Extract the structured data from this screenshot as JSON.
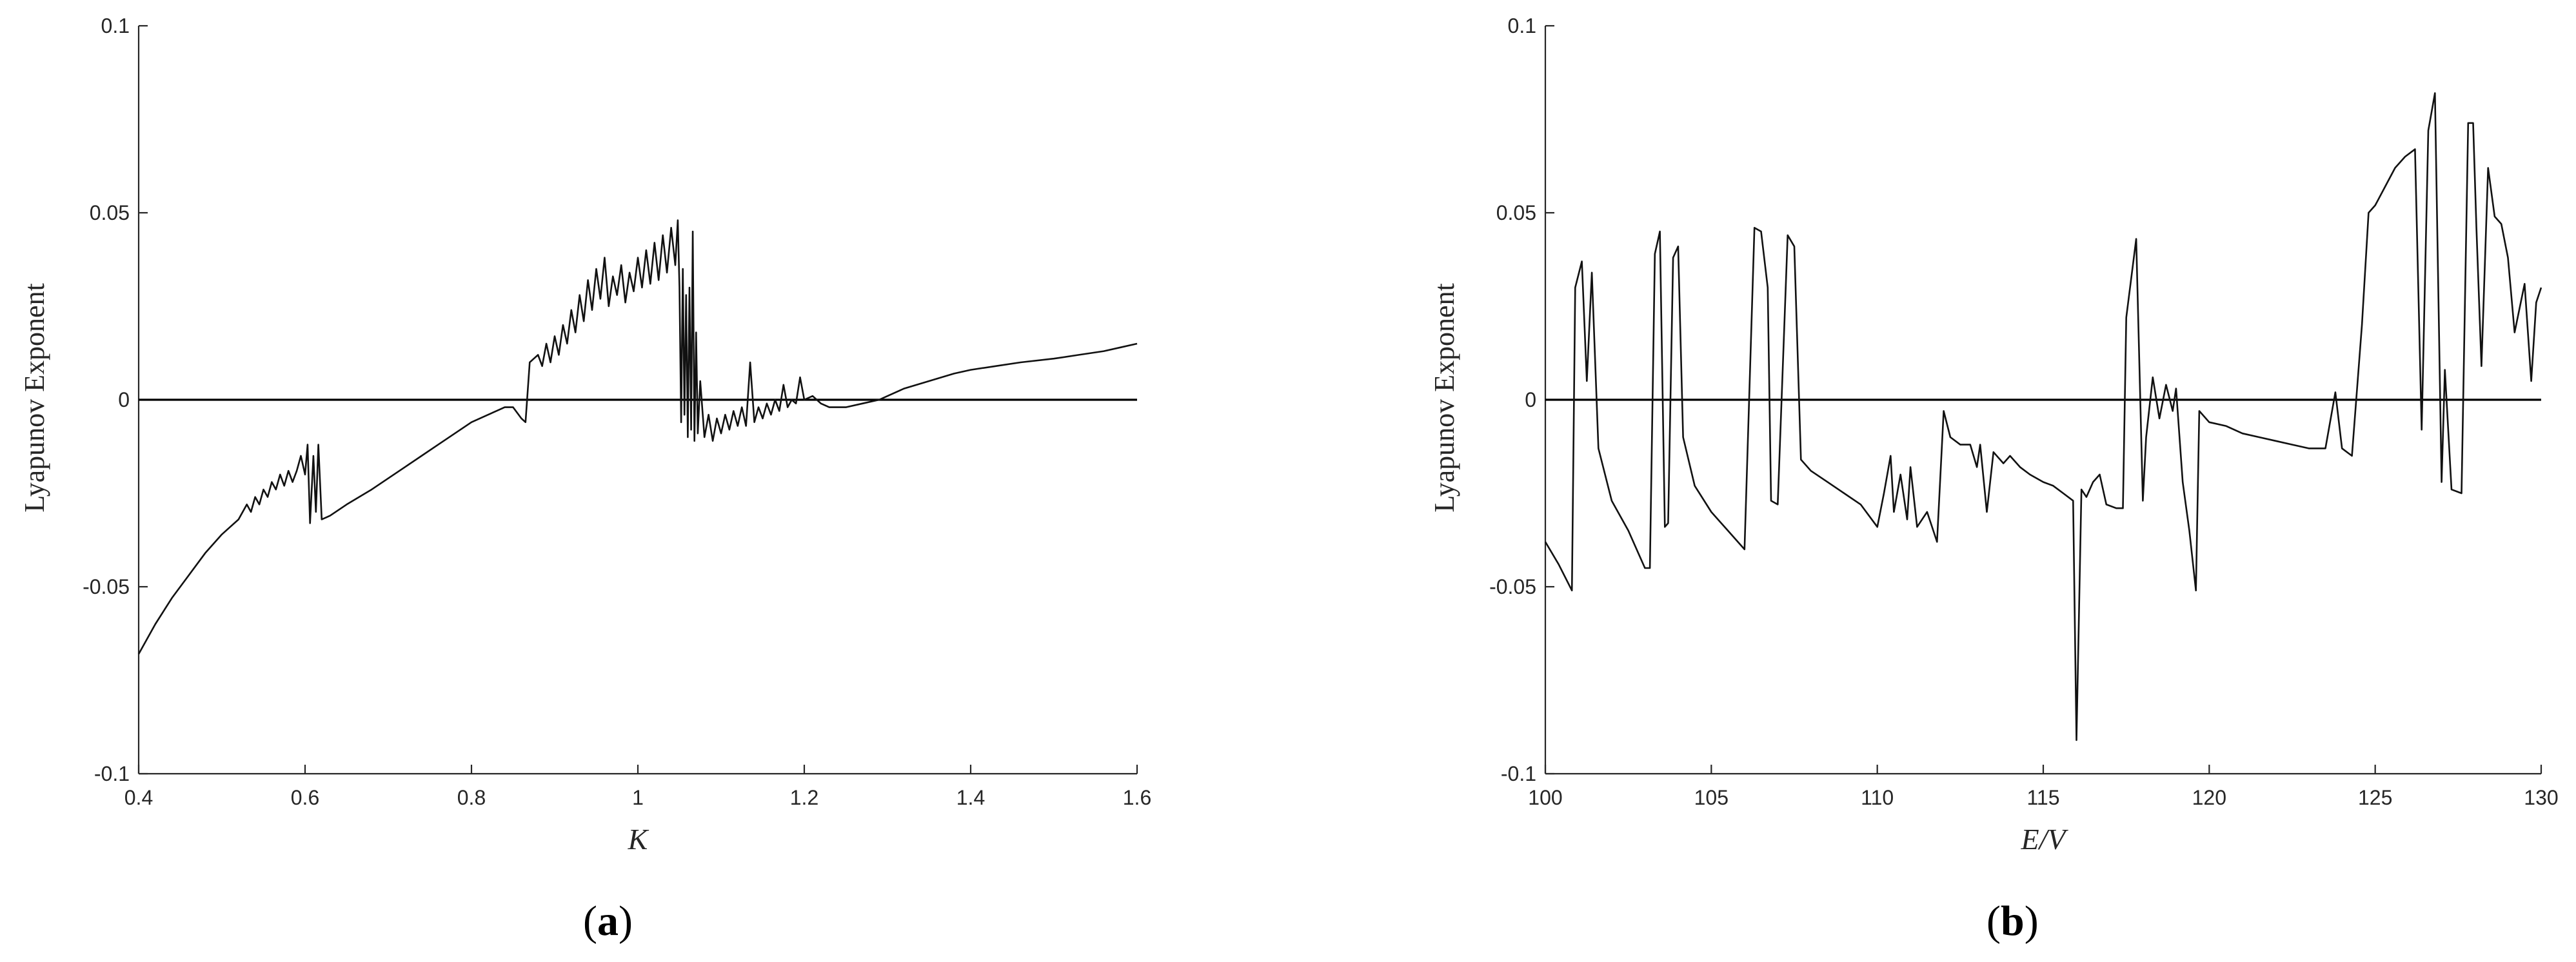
{
  "chart_data": [
    {
      "type": "line",
      "panel_label": "a",
      "xlabel": "K",
      "ylabel": "Lyapunov Exponent",
      "xlim": [
        0.4,
        1.6
      ],
      "ylim": [
        -0.1,
        0.1
      ],
      "xticks": [
        0.4,
        0.6,
        0.8,
        1,
        1.2,
        1.4,
        1.6
      ],
      "xtick_labels": [
        "0.4",
        "0.6",
        "0.8",
        "1",
        "1.2",
        "1.4",
        "1.6"
      ],
      "yticks": [
        -0.1,
        -0.05,
        0,
        0.05,
        0.1
      ],
      "ytick_labels": [
        "-0.1",
        "-0.05",
        "0",
        "0.05",
        "0.1"
      ],
      "reference_line_y": 0,
      "series": [
        {
          "points": [
            [
              0.4,
              -0.068
            ],
            [
              0.42,
              -0.06
            ],
            [
              0.44,
              -0.053
            ],
            [
              0.46,
              -0.047
            ],
            [
              0.48,
              -0.041
            ],
            [
              0.5,
              -0.036
            ],
            [
              0.51,
              -0.034
            ],
            [
              0.52,
              -0.032
            ],
            [
              0.53,
              -0.028
            ],
            [
              0.535,
              -0.03
            ],
            [
              0.54,
              -0.026
            ],
            [
              0.545,
              -0.028
            ],
            [
              0.55,
              -0.024
            ],
            [
              0.555,
              -0.026
            ],
            [
              0.56,
              -0.022
            ],
            [
              0.565,
              -0.024
            ],
            [
              0.57,
              -0.02
            ],
            [
              0.575,
              -0.023
            ],
            [
              0.58,
              -0.019
            ],
            [
              0.585,
              -0.022
            ],
            [
              0.59,
              -0.019
            ],
            [
              0.595,
              -0.015
            ],
            [
              0.6,
              -0.02
            ],
            [
              0.603,
              -0.012
            ],
            [
              0.606,
              -0.033
            ],
            [
              0.61,
              -0.015
            ],
            [
              0.613,
              -0.03
            ],
            [
              0.616,
              -0.012
            ],
            [
              0.62,
              -0.032
            ],
            [
              0.63,
              -0.031
            ],
            [
              0.65,
              -0.028
            ],
            [
              0.68,
              -0.024
            ],
            [
              0.7,
              -0.021
            ],
            [
              0.72,
              -0.018
            ],
            [
              0.74,
              -0.015
            ],
            [
              0.76,
              -0.012
            ],
            [
              0.78,
              -0.009
            ],
            [
              0.8,
              -0.006
            ],
            [
              0.82,
              -0.004
            ],
            [
              0.84,
              -0.002
            ],
            [
              0.85,
              -0.002
            ],
            [
              0.86,
              -0.005
            ],
            [
              0.865,
              -0.006
            ],
            [
              0.87,
              0.01
            ],
            [
              0.875,
              0.011
            ],
            [
              0.88,
              0.012
            ],
            [
              0.885,
              0.009
            ],
            [
              0.89,
              0.015
            ],
            [
              0.895,
              0.01
            ],
            [
              0.9,
              0.017
            ],
            [
              0.905,
              0.012
            ],
            [
              0.91,
              0.02
            ],
            [
              0.915,
              0.015
            ],
            [
              0.92,
              0.024
            ],
            [
              0.925,
              0.018
            ],
            [
              0.93,
              0.028
            ],
            [
              0.935,
              0.021
            ],
            [
              0.94,
              0.032
            ],
            [
              0.945,
              0.024
            ],
            [
              0.95,
              0.035
            ],
            [
              0.955,
              0.027
            ],
            [
              0.96,
              0.038
            ],
            [
              0.965,
              0.025
            ],
            [
              0.97,
              0.033
            ],
            [
              0.975,
              0.028
            ],
            [
              0.98,
              0.036
            ],
            [
              0.985,
              0.026
            ],
            [
              0.99,
              0.034
            ],
            [
              0.995,
              0.029
            ],
            [
              1.0,
              0.038
            ],
            [
              1.005,
              0.03
            ],
            [
              1.01,
              0.04
            ],
            [
              1.015,
              0.031
            ],
            [
              1.02,
              0.042
            ],
            [
              1.025,
              0.032
            ],
            [
              1.03,
              0.044
            ],
            [
              1.035,
              0.034
            ],
            [
              1.04,
              0.046
            ],
            [
              1.045,
              0.036
            ],
            [
              1.048,
              0.048
            ],
            [
              1.05,
              0.03
            ],
            [
              1.052,
              -0.006
            ],
            [
              1.054,
              0.035
            ],
            [
              1.056,
              -0.004
            ],
            [
              1.058,
              0.028
            ],
            [
              1.06,
              -0.01
            ],
            [
              1.062,
              0.03
            ],
            [
              1.064,
              -0.008
            ],
            [
              1.066,
              0.045
            ],
            [
              1.068,
              -0.011
            ],
            [
              1.07,
              0.018
            ],
            [
              1.072,
              -0.009
            ],
            [
              1.075,
              0.005
            ],
            [
              1.08,
              -0.01
            ],
            [
              1.085,
              -0.004
            ],
            [
              1.09,
              -0.011
            ],
            [
              1.095,
              -0.005
            ],
            [
              1.1,
              -0.009
            ],
            [
              1.105,
              -0.004
            ],
            [
              1.11,
              -0.008
            ],
            [
              1.115,
              -0.003
            ],
            [
              1.12,
              -0.007
            ],
            [
              1.125,
              -0.002
            ],
            [
              1.13,
              -0.007
            ],
            [
              1.135,
              0.01
            ],
            [
              1.14,
              -0.006
            ],
            [
              1.145,
              -0.002
            ],
            [
              1.15,
              -0.005
            ],
            [
              1.155,
              -0.001
            ],
            [
              1.16,
              -0.004
            ],
            [
              1.165,
              0.0
            ],
            [
              1.17,
              -0.003
            ],
            [
              1.175,
              0.004
            ],
            [
              1.18,
              -0.002
            ],
            [
              1.185,
              0.0
            ],
            [
              1.19,
              -0.001
            ],
            [
              1.195,
              0.006
            ],
            [
              1.2,
              0.0
            ],
            [
              1.21,
              0.001
            ],
            [
              1.22,
              -0.001
            ],
            [
              1.23,
              -0.002
            ],
            [
              1.25,
              -0.002
            ],
            [
              1.27,
              -0.001
            ],
            [
              1.29,
              0.0
            ],
            [
              1.3,
              0.001
            ],
            [
              1.32,
              0.003
            ],
            [
              1.35,
              0.005
            ],
            [
              1.38,
              0.007
            ],
            [
              1.4,
              0.008
            ],
            [
              1.43,
              0.009
            ],
            [
              1.46,
              0.01
            ],
            [
              1.5,
              0.011
            ],
            [
              1.53,
              0.012
            ],
            [
              1.56,
              0.013
            ],
            [
              1.58,
              0.014
            ],
            [
              1.6,
              0.015
            ]
          ]
        }
      ]
    },
    {
      "type": "line",
      "panel_label": "b",
      "xlabel": "E/V",
      "ylabel": "Lyapunov Exponent",
      "xlim": [
        100,
        130
      ],
      "ylim": [
        -0.1,
        0.1
      ],
      "xticks": [
        100,
        105,
        110,
        115,
        120,
        125,
        130
      ],
      "xtick_labels": [
        "100",
        "105",
        "110",
        "115",
        "120",
        "125",
        "130"
      ],
      "yticks": [
        -0.1,
        -0.05,
        0,
        0.05,
        0.1
      ],
      "ytick_labels": [
        "-0.1",
        "-0.05",
        "0",
        "0.05",
        "0.1"
      ],
      "reference_line_y": 0,
      "series": [
        {
          "points": [
            [
              100,
              -0.038
            ],
            [
              100.4,
              -0.044
            ],
            [
              100.8,
              -0.051
            ],
            [
              100.9,
              0.03
            ],
            [
              101.1,
              0.037
            ],
            [
              101.25,
              0.005
            ],
            [
              101.4,
              0.034
            ],
            [
              101.6,
              -0.013
            ],
            [
              102,
              -0.027
            ],
            [
              102.5,
              -0.035
            ],
            [
              103,
              -0.045
            ],
            [
              103.15,
              -0.045
            ],
            [
              103.3,
              0.039
            ],
            [
              103.45,
              0.045
            ],
            [
              103.6,
              -0.034
            ],
            [
              103.7,
              -0.033
            ],
            [
              103.85,
              0.038
            ],
            [
              104,
              0.041
            ],
            [
              104.15,
              -0.01
            ],
            [
              104.5,
              -0.023
            ],
            [
              105,
              -0.03
            ],
            [
              105.5,
              -0.035
            ],
            [
              106,
              -0.04
            ],
            [
              106.3,
              0.046
            ],
            [
              106.5,
              0.045
            ],
            [
              106.7,
              0.03
            ],
            [
              106.8,
              -0.027
            ],
            [
              107,
              -0.028
            ],
            [
              107.3,
              0.044
            ],
            [
              107.5,
              0.041
            ],
            [
              107.7,
              -0.016
            ],
            [
              108,
              -0.019
            ],
            [
              108.5,
              -0.022
            ],
            [
              109,
              -0.025
            ],
            [
              109.5,
              -0.028
            ],
            [
              110,
              -0.034
            ],
            [
              110.2,
              -0.025
            ],
            [
              110.4,
              -0.015
            ],
            [
              110.5,
              -0.03
            ],
            [
              110.7,
              -0.02
            ],
            [
              110.9,
              -0.032
            ],
            [
              111,
              -0.018
            ],
            [
              111.2,
              -0.034
            ],
            [
              111.5,
              -0.03
            ],
            [
              111.8,
              -0.038
            ],
            [
              112,
              -0.003
            ],
            [
              112.2,
              -0.01
            ],
            [
              112.5,
              -0.012
            ],
            [
              112.8,
              -0.012
            ],
            [
              113,
              -0.018
            ],
            [
              113.1,
              -0.012
            ],
            [
              113.3,
              -0.03
            ],
            [
              113.5,
              -0.014
            ],
            [
              113.8,
              -0.017
            ],
            [
              114,
              -0.015
            ],
            [
              114.3,
              -0.018
            ],
            [
              114.6,
              -0.02
            ],
            [
              115,
              -0.022
            ],
            [
              115.3,
              -0.023
            ],
            [
              115.6,
              -0.025
            ],
            [
              115.9,
              -0.027
            ],
            [
              116,
              -0.091
            ],
            [
              116.15,
              -0.024
            ],
            [
              116.3,
              -0.026
            ],
            [
              116.5,
              -0.022
            ],
            [
              116.7,
              -0.02
            ],
            [
              116.9,
              -0.028
            ],
            [
              117.2,
              -0.029
            ],
            [
              117.4,
              -0.029
            ],
            [
              117.5,
              0.022
            ],
            [
              117.8,
              0.043
            ],
            [
              118,
              -0.027
            ],
            [
              118.1,
              -0.01
            ],
            [
              118.3,
              0.006
            ],
            [
              118.5,
              -0.005
            ],
            [
              118.7,
              0.004
            ],
            [
              118.9,
              -0.003
            ],
            [
              119,
              0.003
            ],
            [
              119.2,
              -0.022
            ],
            [
              119.4,
              -0.035
            ],
            [
              119.6,
              -0.051
            ],
            [
              119.7,
              -0.003
            ],
            [
              120,
              -0.006
            ],
            [
              120.5,
              -0.007
            ],
            [
              121,
              -0.009
            ],
            [
              121.5,
              -0.01
            ],
            [
              122,
              -0.011
            ],
            [
              122.5,
              -0.012
            ],
            [
              123,
              -0.013
            ],
            [
              123.5,
              -0.013
            ],
            [
              123.8,
              0.002
            ],
            [
              124,
              -0.013
            ],
            [
              124.3,
              -0.015
            ],
            [
              124.6,
              0.02
            ],
            [
              124.8,
              0.05
            ],
            [
              125,
              0.052
            ],
            [
              125.3,
              0.057
            ],
            [
              125.6,
              0.062
            ],
            [
              125.9,
              0.065
            ],
            [
              126.2,
              0.067
            ],
            [
              126.4,
              -0.008
            ],
            [
              126.6,
              0.072
            ],
            [
              126.8,
              0.082
            ],
            [
              127,
              -0.022
            ],
            [
              127.1,
              0.008
            ],
            [
              127.3,
              -0.024
            ],
            [
              127.6,
              -0.025
            ],
            [
              127.8,
              0.074
            ],
            [
              127.95,
              0.074
            ],
            [
              128.05,
              0.046
            ],
            [
              128.2,
              0.009
            ],
            [
              128.4,
              0.062
            ],
            [
              128.6,
              0.049
            ],
            [
              128.8,
              0.047
            ],
            [
              129,
              0.038
            ],
            [
              129.2,
              0.018
            ],
            [
              129.5,
              0.031
            ],
            [
              129.7,
              0.005
            ],
            [
              129.85,
              0.026
            ],
            [
              130,
              0.03
            ]
          ]
        }
      ]
    }
  ]
}
